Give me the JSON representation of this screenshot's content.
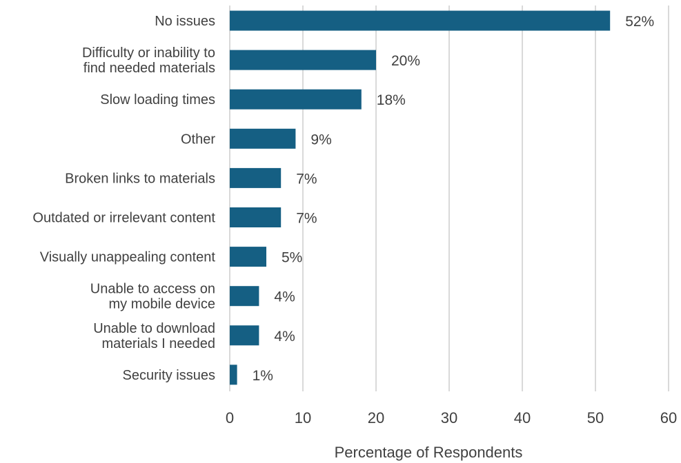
{
  "chart_data": {
    "type": "bar",
    "orientation": "horizontal",
    "title": "",
    "xlabel": "Percentage of Respondents",
    "ylabel": "",
    "xlim": [
      0,
      60
    ],
    "xticks": [
      0,
      10,
      20,
      30,
      40,
      50,
      60
    ],
    "grid": "vertical",
    "legend": "none",
    "categories": [
      [
        "No issues"
      ],
      [
        "Difficulty or inability to",
        "find needed materials"
      ],
      [
        "Slow loading times"
      ],
      [
        "Other"
      ],
      [
        "Broken links to materials"
      ],
      [
        "Outdated or irrelevant content"
      ],
      [
        "Visually unappealing content"
      ],
      [
        "Unable to access on",
        "my mobile device"
      ],
      [
        "Unable to download",
        "materials I needed"
      ],
      [
        "Security issues"
      ]
    ],
    "values": [
      52,
      20,
      18,
      9,
      7,
      7,
      5,
      4,
      4,
      1
    ],
    "data_labels": [
      "52%",
      "20%",
      "18%",
      "9%",
      "7%",
      "7%",
      "5%",
      "4%",
      "4%",
      "1%"
    ],
    "colors": {
      "bar": "#155F83",
      "grid": "#D9D9D9",
      "text": "#404040"
    }
  }
}
